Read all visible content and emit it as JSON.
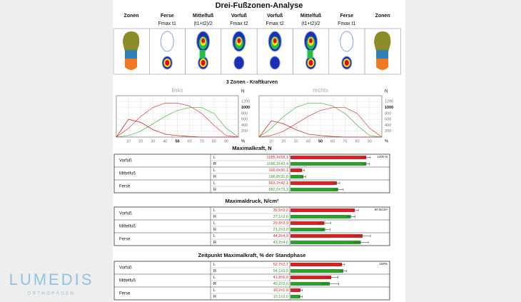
{
  "header": {
    "title": "Drei-Fußzonen-Analyse"
  },
  "foot_zones": {
    "columns": [
      {
        "label": "Zonen"
      },
      {
        "label": "Ferse",
        "sub": "Fmax t1"
      },
      {
        "label": "Mittelfuß",
        "sub": "(t1+t2)/2"
      },
      {
        "label": "Vorfuß",
        "sub": "Fmax t2"
      },
      {
        "label": "Vorfuß",
        "sub": "Fmax t2"
      },
      {
        "label": "Mittelfuß",
        "sub": "(t1+t2)/2"
      },
      {
        "label": "Ferse",
        "sub": "Fmax t1"
      },
      {
        "label": "Zonen"
      }
    ]
  },
  "force_curves": {
    "title": "3 Zonen - Kraftkurven"
  },
  "logo": {
    "name": "LUMEDIS",
    "sub": "ORTHOPÄDEN"
  },
  "chart_data": [
    {
      "type": "line",
      "title": "links",
      "ylabel": "N",
      "xlabel": "%",
      "x": [
        0,
        10,
        20,
        30,
        40,
        50,
        60,
        70,
        80,
        90,
        100
      ],
      "series": [
        {
          "color": "#d9534f",
          "values": [
            0,
            300,
            700,
            1000,
            1150,
            1150,
            1050,
            800,
            400,
            50,
            0
          ]
        },
        {
          "color": "#5cb85c",
          "values": [
            0,
            50,
            200,
            450,
            700,
            900,
            1000,
            1000,
            800,
            300,
            0
          ]
        },
        {
          "color": "#c9302c",
          "values": [
            0,
            600,
            500,
            250,
            100,
            50,
            20,
            0,
            0,
            0,
            0
          ]
        }
      ],
      "xlim": [
        0,
        100
      ],
      "xticks": [
        10,
        20,
        30,
        40,
        50,
        60,
        70,
        80,
        90
      ],
      "ylim": [
        0,
        1400
      ],
      "yticks": [
        200,
        400,
        600,
        800,
        1000,
        1200
      ],
      "grid": true
    },
    {
      "type": "line",
      "title": "rechts",
      "ylabel": "N",
      "xlabel": "%",
      "x": [
        0,
        10,
        20,
        30,
        40,
        50,
        60,
        70,
        80,
        90,
        100
      ],
      "series": [
        {
          "color": "#5cb85c",
          "values": [
            0,
            300,
            700,
            1000,
            1150,
            1150,
            1050,
            800,
            400,
            50,
            0
          ]
        },
        {
          "color": "#d9534f",
          "values": [
            0,
            50,
            200,
            450,
            700,
            900,
            1000,
            1000,
            800,
            300,
            0
          ]
        },
        {
          "color": "#c9302c",
          "values": [
            0,
            550,
            450,
            250,
            100,
            50,
            20,
            0,
            0,
            0,
            0
          ]
        }
      ],
      "xlim": [
        0,
        100
      ],
      "xticks": [
        10,
        20,
        30,
        40,
        50,
        60,
        70,
        80,
        90
      ],
      "ylim": [
        0,
        1400
      ],
      "yticks": [
        200,
        400,
        600,
        800,
        1000,
        1200
      ],
      "grid": true
    },
    {
      "type": "hbar",
      "title": "Maximalkraft, N",
      "categories": [
        "Vorfuß",
        "Mittelfuß",
        "Ferse"
      ],
      "series": [
        {
          "name": "L",
          "color": "#d42424",
          "values": [
            1085.4,
            166.0,
            663.2
          ],
          "errors": [
            58.1,
            30.1,
            42.1
          ],
          "value_labels": [
            "1085,4±58,1",
            "166,0±30,1",
            "663,2±42,1"
          ]
        },
        {
          "name": "R",
          "color": "#2ca02c",
          "values": [
            1086.3,
            186.8,
            682.0
          ],
          "errors": [
            43.4,
            31.8,
            73.3
          ],
          "value_labels": [
            "1086,3±43,4",
            "186,8±31,8",
            "682,0±73,3"
          ]
        }
      ],
      "xlim": [
        0,
        1400
      ],
      "xticks": [
        {
          "value": 1400,
          "label": "1400 N"
        }
      ]
    },
    {
      "type": "hbar",
      "title": "Maximaldruck, N/cm²",
      "categories": [
        "Vorfuß",
        "Mittelfuß",
        "Ferse"
      ],
      "series": [
        {
          "name": "L",
          "color": "#d42424",
          "values": [
            39.5,
            20.8,
            44.2
          ],
          "errors": [
            2.2,
            3.9,
            4.9
          ],
          "value_labels": [
            "39,5±2,2",
            "20,8±3,9",
            "44,2±4,9"
          ]
        },
        {
          "name": "R",
          "color": "#2ca02c",
          "values": [
            37.1,
            21.2,
            43.2
          ],
          "errors": [
            2.6,
            3.0,
            4.6
          ],
          "value_labels": [
            "37,1±2,6",
            "21,2±3,0",
            "43,2±4,6"
          ]
        }
      ],
      "xlim": [
        0,
        60
      ],
      "xticks": [
        {
          "value": 60,
          "label": "60 N/cm²"
        }
      ]
    },
    {
      "type": "hbar",
      "title": "Zeitpunkt Maximalkraft, % der Standphase",
      "categories": [
        "Vorfuß",
        "Mittelfuß",
        "Ferse"
      ],
      "series": [
        {
          "name": "L",
          "color": "#d42424",
          "values": [
            52.7,
            41.8,
            10.2
          ],
          "errors": [
            2.7,
            6.9,
            1.9
          ],
          "value_labels": [
            "52,7±2,7",
            "41,8±6,9",
            "10,2±1,9"
          ]
        },
        {
          "name": "R",
          "color": "#2ca02c",
          "values": [
            54.1,
            40.2,
            10.1
          ],
          "errors": [
            3.5,
            9.0,
            2.0
          ],
          "value_labels": [
            "54,1±3,5",
            "40,2±9,0",
            "10,1±2,0"
          ]
        }
      ],
      "xlim": [
        0,
        100
      ],
      "xticks": [
        {
          "value": 100,
          "label": "100%"
        }
      ]
    }
  ]
}
